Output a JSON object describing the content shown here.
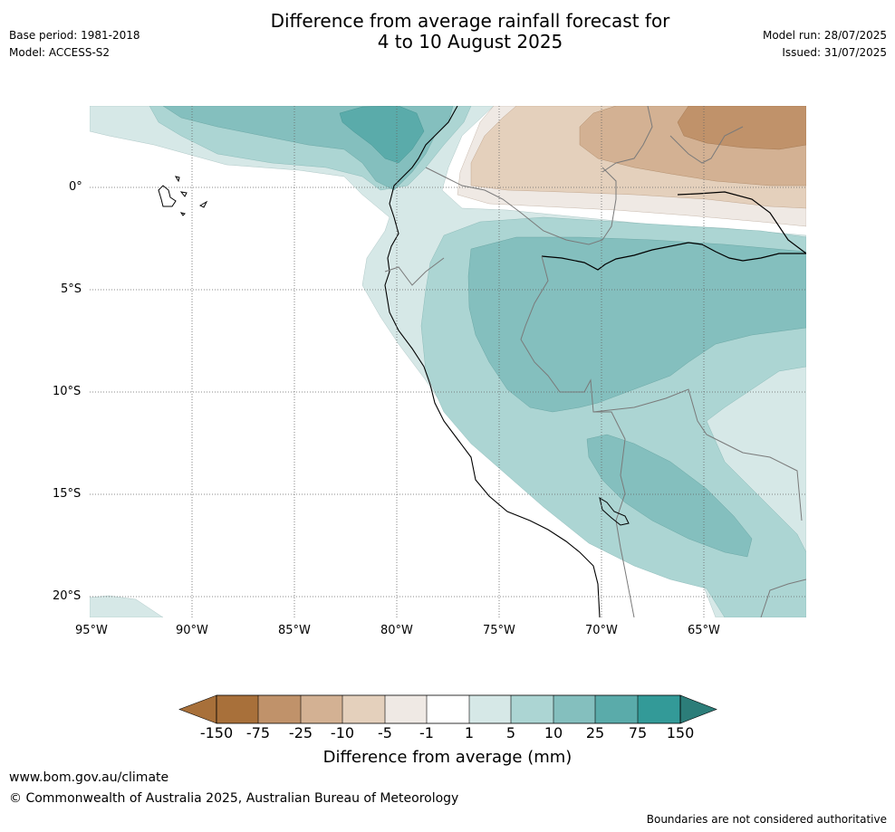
{
  "header": {
    "base_period": "Base period: 1981-2018",
    "model": "Model: ACCESS-S2",
    "title_line1": "Difference from average rainfall forecast for",
    "title_line2": "4 to 10 August 2025",
    "model_run": "Model run: 28/07/2025",
    "issued": "Issued: 31/07/2025"
  },
  "map": {
    "lat_labels": [
      "0°",
      "5°S",
      "10°S",
      "15°S",
      "20°S"
    ],
    "lon_labels": [
      "95°W",
      "90°W",
      "85°W",
      "80°W",
      "75°W",
      "70°W",
      "65°W"
    ],
    "extent": {
      "lon_min": -95,
      "lon_max": -60,
      "lat_min": -21,
      "lat_max": 4
    }
  },
  "colorbar": {
    "ticks": [
      "-150",
      "-75",
      "-25",
      "-10",
      "-5",
      "-1",
      "1",
      "5",
      "10",
      "25",
      "75",
      "150"
    ],
    "colors": [
      "#a8703a",
      "#c0926a",
      "#d3b193",
      "#e4d0bc",
      "#efe9e4",
      "#ffffff",
      "#d6e8e7",
      "#acd5d3",
      "#84bfbe",
      "#5aabaa",
      "#339a98",
      "#2c7d79"
    ],
    "label": "Difference from average (mm)"
  },
  "footer": {
    "url": "www.bom.gov.au/climate",
    "copyright": "© Commonwealth of Australia 2025, Australian Bureau of Meteorology",
    "boundary_note": "Boundaries are not considered authoritative"
  }
}
